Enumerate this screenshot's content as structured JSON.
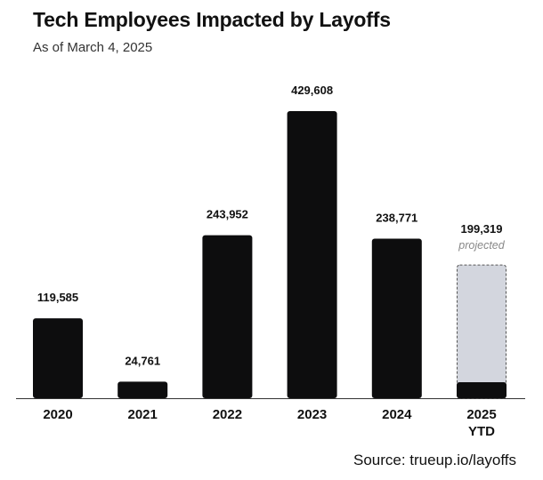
{
  "title": "Tech Employees Impacted by Layoffs",
  "subtitle": "As of March 4, 2025",
  "source": "Source: trueup.io/layoffs",
  "chart_data": {
    "type": "bar",
    "title": "Tech Employees Impacted by Layoffs",
    "subtitle": "As of March 4, 2025",
    "xlabel": "",
    "ylabel": "",
    "categories": [
      "2020",
      "2021",
      "2022",
      "2023",
      "2024",
      "2025\nYTD"
    ],
    "values": [
      119585,
      24761,
      243952,
      429608,
      238771,
      199319
    ],
    "value_labels": [
      "119,585",
      "24,761",
      "243,952",
      "429,608",
      "238,771",
      "199,319"
    ],
    "ytd_actual_2025": 24000,
    "projected_note": "projected",
    "ylim": [
      0,
      429608
    ],
    "grid": false,
    "legend": "none",
    "colors": {
      "bar": "#0d0d0e",
      "projected_fill": "#d3d6de",
      "projected_border": "#555555",
      "axis": "#333333"
    }
  }
}
